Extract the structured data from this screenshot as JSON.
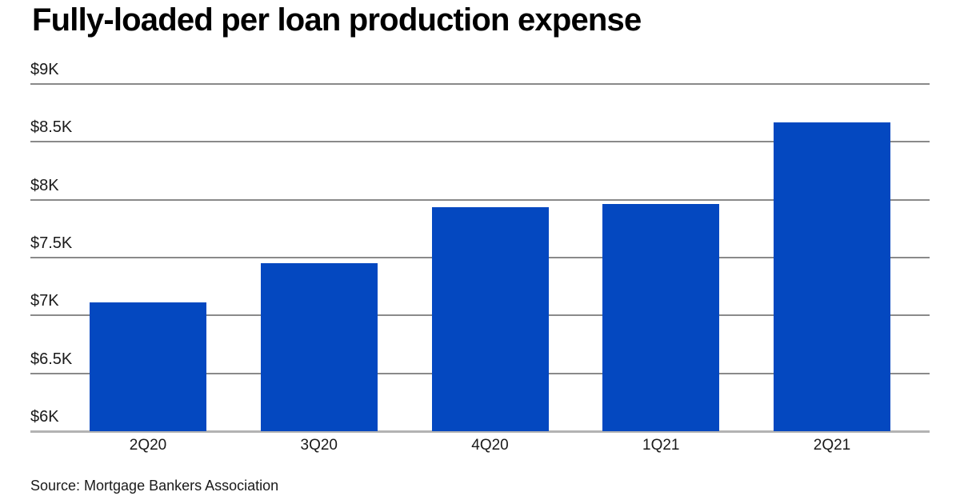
{
  "header": {
    "title": "Fully-loaded per loan production expense"
  },
  "footer": {
    "source": "Source: Mortgage Bankers Association"
  },
  "chart_data": {
    "type": "bar",
    "title": "Fully-loaded per loan production expense",
    "categories": [
      "2Q20",
      "3Q20",
      "4Q20",
      "1Q21",
      "2Q21"
    ],
    "values": [
      7115,
      7452,
      7938,
      7964,
      8668
    ],
    "series_name": "Fully-loaded per loan production expense ($)",
    "xlabel": "",
    "ylabel": "",
    "ylim": [
      6000,
      9000
    ],
    "y_tick_step": 500,
    "y_ticks": [
      {
        "value": 9000,
        "label": "$9K"
      },
      {
        "value": 8500,
        "label": "$8.5K"
      },
      {
        "value": 8000,
        "label": "$8K"
      },
      {
        "value": 7500,
        "label": "$7.5K"
      },
      {
        "value": 7000,
        "label": "$7K"
      },
      {
        "value": 6500,
        "label": "$6.5K"
      },
      {
        "value": 6000,
        "label": "$6K"
      }
    ],
    "grid": true,
    "legend": false,
    "bar_color": "#0448c0",
    "gridline_color": "#8a8a8a",
    "baseline_color": "#b3b3b3",
    "label_color": "#1a1a1a",
    "title_color": "#000000",
    "background_color": "#ffffff",
    "source": "Source: Mortgage Bankers Association"
  }
}
